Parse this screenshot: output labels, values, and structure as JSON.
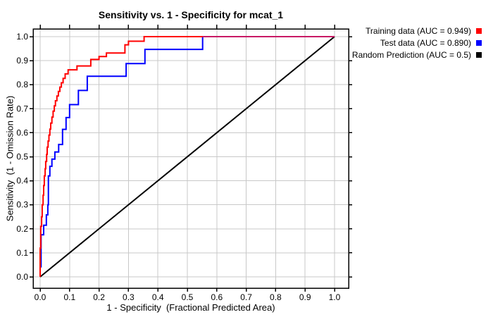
{
  "chart_data": {
    "type": "line",
    "title": "Sensitivity vs. 1 - Specificity for mcat_1",
    "xlabel": "1 - Specificity  (Fractional Predicted Area)",
    "ylabel": "Sensitivity  (1 - Omission Rate)",
    "xlim": [
      0.0,
      1.0
    ],
    "ylim": [
      0.0,
      1.0
    ],
    "xticks": [
      0.0,
      0.1,
      0.2,
      0.3,
      0.4,
      0.5,
      0.6,
      0.7,
      0.8,
      0.9,
      1.0
    ],
    "yticks": [
      0.0,
      0.1,
      0.2,
      0.3,
      0.4,
      0.5,
      0.6,
      0.7,
      0.8,
      0.9,
      1.0
    ],
    "grid": true,
    "grid_color": "#c8c8c8",
    "frame_color": "#000000",
    "background": "#ffffff",
    "legend_position": "top-right-outside",
    "series": [
      {
        "name": "training",
        "label": "Training data (AUC = 0.949)",
        "color": "#ff0000",
        "auc": 0.949,
        "points": [
          [
            0,
            0
          ],
          [
            0,
            0.12
          ],
          [
            0.002,
            0.12
          ],
          [
            0.002,
            0.21
          ],
          [
            0.005,
            0.21
          ],
          [
            0.005,
            0.25
          ],
          [
            0.007,
            0.25
          ],
          [
            0.007,
            0.3
          ],
          [
            0.01,
            0.3
          ],
          [
            0.01,
            0.34
          ],
          [
            0.012,
            0.34
          ],
          [
            0.012,
            0.38
          ],
          [
            0.014,
            0.38
          ],
          [
            0.014,
            0.42
          ],
          [
            0.017,
            0.42
          ],
          [
            0.017,
            0.45
          ],
          [
            0.019,
            0.45
          ],
          [
            0.019,
            0.48
          ],
          [
            0.022,
            0.48
          ],
          [
            0.022,
            0.51
          ],
          [
            0.024,
            0.51
          ],
          [
            0.024,
            0.54
          ],
          [
            0.027,
            0.54
          ],
          [
            0.027,
            0.565
          ],
          [
            0.03,
            0.565
          ],
          [
            0.03,
            0.59
          ],
          [
            0.033,
            0.59
          ],
          [
            0.033,
            0.615
          ],
          [
            0.036,
            0.615
          ],
          [
            0.036,
            0.64
          ],
          [
            0.04,
            0.64
          ],
          [
            0.04,
            0.665
          ],
          [
            0.044,
            0.665
          ],
          [
            0.044,
            0.69
          ],
          [
            0.048,
            0.69
          ],
          [
            0.048,
            0.712
          ],
          [
            0.052,
            0.712
          ],
          [
            0.052,
            0.733
          ],
          [
            0.057,
            0.733
          ],
          [
            0.057,
            0.753
          ],
          [
            0.062,
            0.753
          ],
          [
            0.062,
            0.772
          ],
          [
            0.067,
            0.772
          ],
          [
            0.067,
            0.79
          ],
          [
            0.072,
            0.79
          ],
          [
            0.072,
            0.808
          ],
          [
            0.078,
            0.808
          ],
          [
            0.078,
            0.826
          ],
          [
            0.085,
            0.826
          ],
          [
            0.085,
            0.845
          ],
          [
            0.095,
            0.845
          ],
          [
            0.095,
            0.862
          ],
          [
            0.125,
            0.862
          ],
          [
            0.125,
            0.878
          ],
          [
            0.172,
            0.878
          ],
          [
            0.172,
            0.905
          ],
          [
            0.2,
            0.905
          ],
          [
            0.2,
            0.917
          ],
          [
            0.225,
            0.917
          ],
          [
            0.225,
            0.932
          ],
          [
            0.288,
            0.932
          ],
          [
            0.288,
            0.966
          ],
          [
            0.3,
            0.966
          ],
          [
            0.3,
            0.981
          ],
          [
            0.353,
            0.981
          ],
          [
            0.353,
            1.0
          ],
          [
            1.0,
            1.0
          ]
        ]
      },
      {
        "name": "test",
        "label": "Test data (AUC = 0.890)",
        "color": "#0000ff",
        "auc": 0.89,
        "points": [
          [
            0,
            0
          ],
          [
            0,
            0.042
          ],
          [
            0.003,
            0.042
          ],
          [
            0.003,
            0.175
          ],
          [
            0.012,
            0.175
          ],
          [
            0.012,
            0.215
          ],
          [
            0.021,
            0.215
          ],
          [
            0.021,
            0.258
          ],
          [
            0.026,
            0.258
          ],
          [
            0.026,
            0.3
          ],
          [
            0.028,
            0.3
          ],
          [
            0.028,
            0.42
          ],
          [
            0.033,
            0.42
          ],
          [
            0.033,
            0.46
          ],
          [
            0.04,
            0.46
          ],
          [
            0.04,
            0.49
          ],
          [
            0.05,
            0.49
          ],
          [
            0.05,
            0.52
          ],
          [
            0.063,
            0.52
          ],
          [
            0.063,
            0.551
          ],
          [
            0.076,
            0.551
          ],
          [
            0.076,
            0.614
          ],
          [
            0.088,
            0.614
          ],
          [
            0.088,
            0.663
          ],
          [
            0.1,
            0.663
          ],
          [
            0.1,
            0.717
          ],
          [
            0.13,
            0.717
          ],
          [
            0.13,
            0.776
          ],
          [
            0.16,
            0.776
          ],
          [
            0.16,
            0.835
          ],
          [
            0.292,
            0.835
          ],
          [
            0.292,
            0.888
          ],
          [
            0.356,
            0.888
          ],
          [
            0.356,
            0.947
          ],
          [
            0.552,
            0.947
          ],
          [
            0.552,
            1.0
          ],
          [
            1.0,
            1.0
          ]
        ]
      },
      {
        "name": "random",
        "label": "Random Prediction (AUC = 0.5)",
        "color": "#000000",
        "auc": 0.5,
        "points": [
          [
            0,
            0
          ],
          [
            1,
            1
          ]
        ]
      }
    ],
    "overlap_segment": {
      "note": "red and blue curves coincide at sensitivity 1.0 beyond x=0.552, rendering as crimson",
      "color": "#c81964",
      "points": [
        [
          0.552,
          1.0
        ],
        [
          1.0,
          1.0
        ]
      ]
    }
  }
}
